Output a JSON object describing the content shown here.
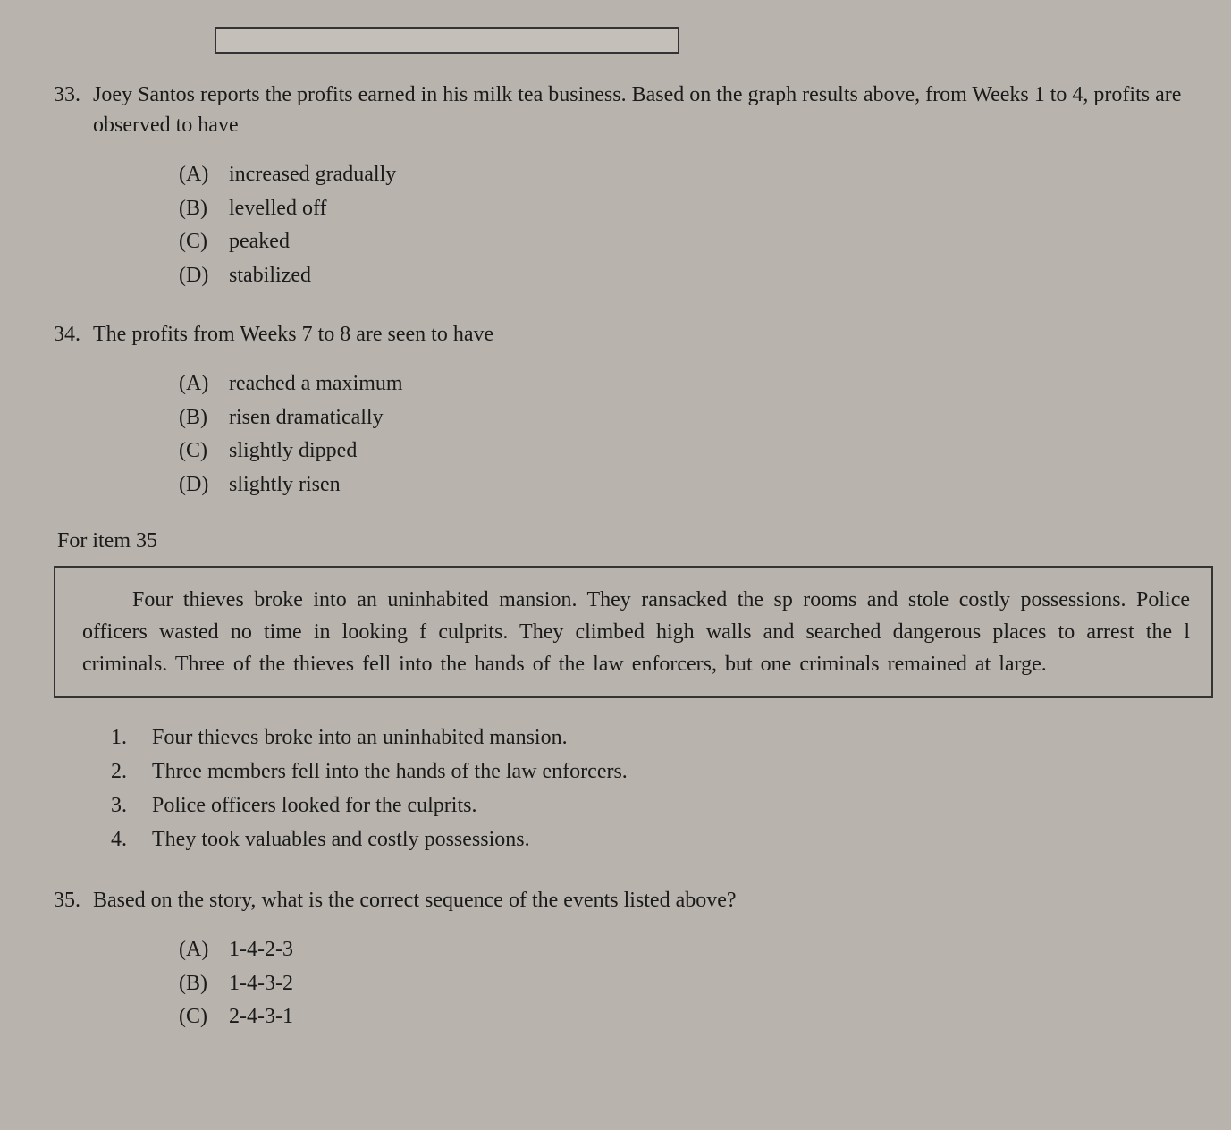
{
  "q33": {
    "number": "33.",
    "text": "Joey Santos reports the profits earned in his milk tea business. Based on the graph results above, from Weeks 1 to 4, profits are observed to have",
    "options": {
      "A": "increased gradually",
      "B": "levelled off",
      "C": "peaked",
      "D": "stabilized"
    }
  },
  "q34": {
    "number": "34.",
    "text": "The profits from Weeks 7 to 8 are seen to have",
    "options": {
      "A": "reached a maximum",
      "B": "risen dramatically",
      "C": "slightly dipped",
      "D": "slightly risen"
    }
  },
  "section_label": "For item 35",
  "passage": "Four thieves broke into an uninhabited mansion. They ransacked the sp rooms and stole costly possessions. Police officers wasted no time in looking f culprits. They climbed high walls and searched dangerous places to arrest the l criminals. Three of the thieves fell into the hands of the law enforcers, but one criminals remained at large.",
  "numbered_list": {
    "1": "Four thieves broke into an uninhabited mansion.",
    "2": "Three members fell into the hands of the law enforcers.",
    "3": "Police officers looked for the culprits.",
    "4": "They took valuables and costly possessions."
  },
  "q35": {
    "number": "35.",
    "text": "Based on the story, what is the correct sequence of the events listed above?",
    "options": {
      "A": "1-4-2-3",
      "B": "1-4-3-2",
      "C": "2-4-3-1"
    }
  },
  "letters": {
    "A": "(A)",
    "B": "(B)",
    "C": "(C)",
    "D": "(D)"
  }
}
